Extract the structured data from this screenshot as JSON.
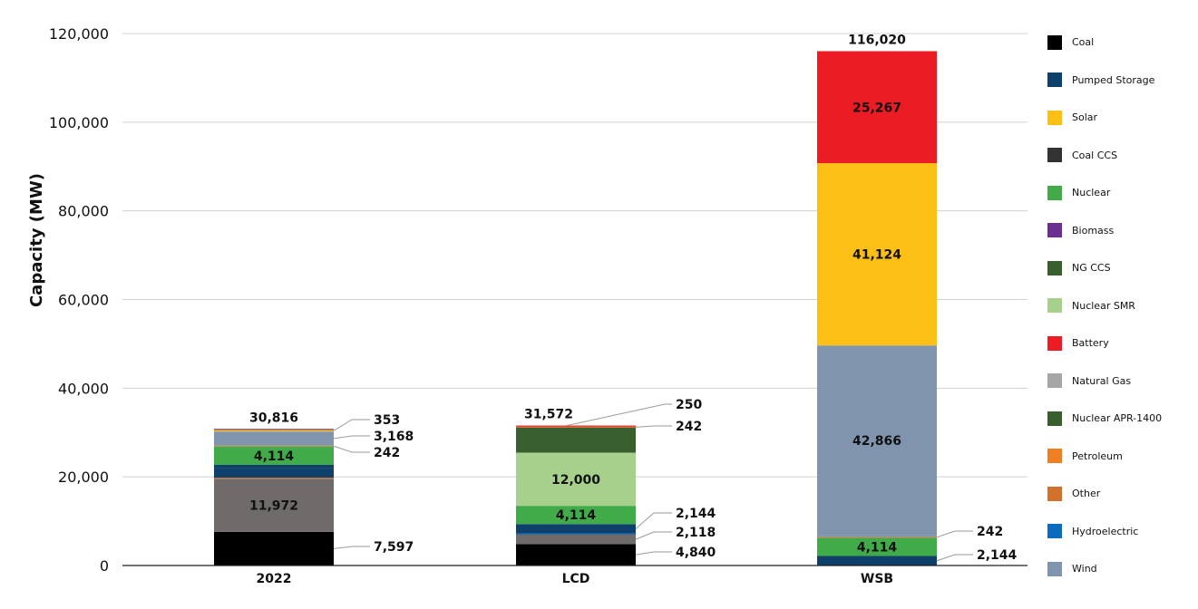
{
  "chart_data": {
    "type": "bar",
    "stacked": true,
    "title": "",
    "xlabel": "",
    "ylabel": "Capacity (MW)",
    "ylim": [
      0,
      120000
    ],
    "yticks": [
      0,
      20000,
      40000,
      60000,
      80000,
      100000,
      120000
    ],
    "ytick_labels": [
      "0",
      "20,000",
      "40,000",
      "60,000",
      "80,000",
      "100,000",
      "120,000"
    ],
    "grid": true,
    "legend_position": "right",
    "categories": [
      "2022",
      "LCD",
      "WSB"
    ],
    "totals": [
      30816,
      31572,
      116020
    ],
    "total_labels": [
      "30,816",
      "31,572",
      "116,020"
    ],
    "legend": [
      {
        "name": "Coal",
        "color": "#000000"
      },
      {
        "name": "Pumped Storage",
        "color": "#0f3f6b"
      },
      {
        "name": "Solar",
        "color": "#fbbf16"
      },
      {
        "name": "Coal CCS",
        "color": "#333333"
      },
      {
        "name": "Nuclear",
        "color": "#41ab4a"
      },
      {
        "name": "Biomass",
        "color": "#6b2e91"
      },
      {
        "name": "NG CCS",
        "color": "#3a5f2e"
      },
      {
        "name": "Nuclear SMR",
        "color": "#a8d08d"
      },
      {
        "name": "Battery",
        "color": "#ec1c24"
      },
      {
        "name": "Natural Gas",
        "color": "#a6a6a6"
      },
      {
        "name": "Nuclear APR-1400",
        "color": "#3a5f2e"
      },
      {
        "name": "Petroleum",
        "color": "#ee7f22"
      },
      {
        "name": "Other",
        "color": "#d2712c"
      },
      {
        "name": "Hydroelectric",
        "color": "#0b6bbf"
      },
      {
        "name": "Wind",
        "color": "#8194ae"
      }
    ],
    "stacks": [
      {
        "category": "2022",
        "segments": [
          {
            "name": "Coal",
            "value": 7597,
            "color": "#000000",
            "label": "7,597",
            "label_pos": "side"
          },
          {
            "name": "Natural Gas",
            "value": 11972,
            "color": "#6f6b6a",
            "label": "11,972",
            "label_pos": "inside"
          },
          {
            "name": "Other",
            "value": 242,
            "color": "#d2712c"
          },
          {
            "name": "Pumped Storage",
            "value": 2144,
            "color": "#0f3f6b"
          },
          {
            "name": "Hydroelectric",
            "value": 742,
            "color": "#0f3f6b"
          },
          {
            "name": "Nuclear",
            "value": 4114,
            "color": "#41ab4a",
            "label": "4,114",
            "label_pos": "inside"
          },
          {
            "name": "Petroleum",
            "value": 242,
            "color": "#b38a4a",
            "label": "242",
            "label_pos": "side"
          },
          {
            "name": "Wind",
            "value": 3168,
            "color": "#8194ae",
            "label": "3,168",
            "label_pos": "side"
          },
          {
            "name": "Solar",
            "value": 353,
            "color": "#fbbf16",
            "label": "353",
            "label_pos": "side"
          },
          {
            "name": "Biomass",
            "value": 242,
            "color": "#6b2e91"
          }
        ]
      },
      {
        "category": "LCD",
        "segments": [
          {
            "name": "Coal",
            "value": 4840,
            "color": "#000000",
            "label": "4,840",
            "label_pos": "side"
          },
          {
            "name": "Natural Gas",
            "value": 2118,
            "color": "#6f6b6a",
            "label": "2,118",
            "label_pos": "side"
          },
          {
            "name": "Hydroelectric",
            "value": 242,
            "color": "#0b6bbf"
          },
          {
            "name": "Pumped Storage",
            "value": 2144,
            "color": "#0f3f6b",
            "label": "2,144",
            "label_pos": "side"
          },
          {
            "name": "Nuclear",
            "value": 4114,
            "color": "#41ab4a",
            "label": "4,114",
            "label_pos": "inside"
          },
          {
            "name": "Nuclear SMR",
            "value": 12000,
            "color": "#a8d08d",
            "label": "12,000",
            "label_pos": "inside"
          },
          {
            "name": "NG CCS",
            "value": 5622,
            "color": "#3a5f2e"
          },
          {
            "name": "Other",
            "value": 242,
            "color": "#d2712c",
            "label": "242",
            "label_pos": "side"
          },
          {
            "name": "Battery",
            "value": 250,
            "color": "#ec1c24",
            "label": "250",
            "label_pos": "side-up"
          }
        ]
      },
      {
        "category": "WSB",
        "segments": [
          {
            "name": "Pumped Storage",
            "value": 2144,
            "color": "#0f3f6b",
            "label": "2,144",
            "label_pos": "side"
          },
          {
            "name": "Nuclear",
            "value": 4114,
            "color": "#41ab4a",
            "label": "4,114",
            "label_pos": "inside"
          },
          {
            "name": "Other",
            "value": 242,
            "color": "#c0784a",
            "label": "242",
            "label_pos": "side"
          },
          {
            "name": "Hydroelectric",
            "value": 263,
            "color": "#8194ae"
          },
          {
            "name": "Wind",
            "value": 42866,
            "color": "#8194ae",
            "label": "42,866",
            "label_pos": "inside"
          },
          {
            "name": "Solar",
            "value": 41124,
            "color": "#fbbf16",
            "label": "41,124",
            "label_pos": "inside"
          },
          {
            "name": "Battery",
            "value": 25267,
            "color": "#ec1c24",
            "label": "25,267",
            "label_pos": "inside"
          }
        ]
      }
    ]
  }
}
